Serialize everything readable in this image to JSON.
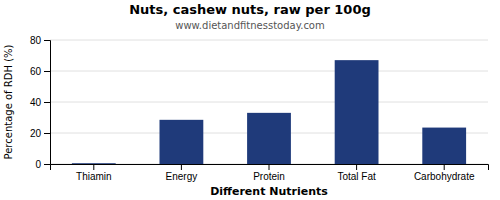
{
  "chart_data": {
    "type": "bar",
    "title": "Nuts, cashew nuts, raw per 100g",
    "subtitle": "www.dietandfitnesstoday.com",
    "xlabel": "Different Nutrients",
    "ylabel": "Percentage of RDH (%)",
    "categories": [
      "Thiamin",
      "Energy",
      "Protein",
      "Total Fat",
      "Carbohydrate"
    ],
    "values": [
      0.5,
      28.5,
      33.0,
      67.0,
      23.5
    ],
    "color": "#1f3a7a",
    "ylim": [
      0,
      80
    ],
    "yticks": [
      0,
      20,
      40,
      60,
      80
    ],
    "grid": true
  }
}
